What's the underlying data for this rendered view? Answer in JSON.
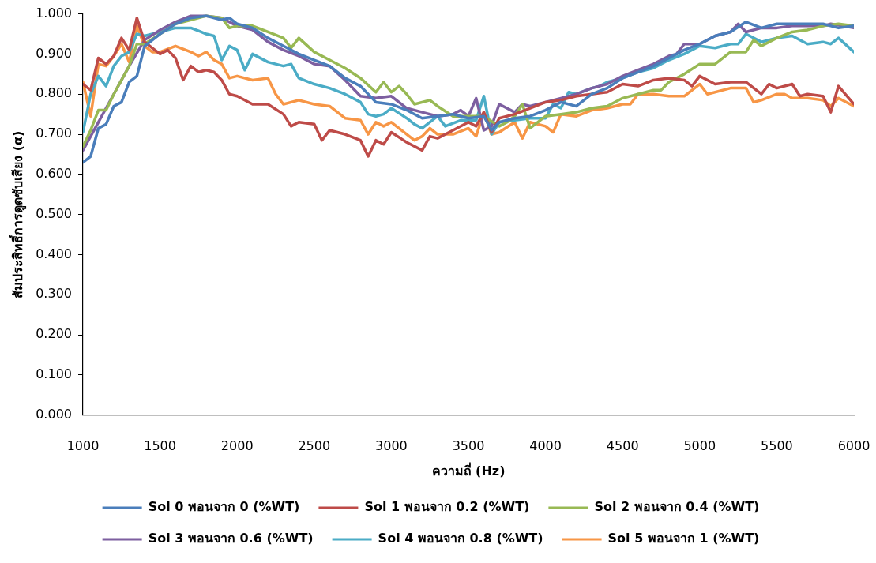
{
  "chart_data": {
    "type": "line",
    "xlabel": "ความถี่ (Hz)",
    "ylabel": "สัมประสิทธิ์การดูดซับเสียง (α)",
    "xlim": [
      1000,
      6000
    ],
    "xticks": [
      1000,
      1500,
      2000,
      2500,
      3000,
      3500,
      4000,
      4500,
      5000,
      5500,
      6000
    ],
    "ylim": [
      0,
      1
    ],
    "yticks": [
      {
        "value": 0,
        "label": "0.000"
      },
      {
        "value": 0.1,
        "label": "0.100"
      },
      {
        "value": 0.2,
        "label": "0.200"
      },
      {
        "value": 0.3,
        "label": "0.300"
      },
      {
        "value": 0.4,
        "label": "0.400"
      },
      {
        "value": 0.5,
        "label": "0.500"
      },
      {
        "value": 0.6,
        "label": "0.600"
      },
      {
        "value": 0.7,
        "label": "0.700"
      },
      {
        "value": 0.8,
        "label": "0.800"
      },
      {
        "value": 0.9,
        "label": "0.900"
      },
      {
        "value": 1,
        "label": "1.000"
      }
    ],
    "grid": false,
    "legend": "bottom",
    "marker": "none",
    "line_style": "solid",
    "series": [
      {
        "name": "Sol 0 พอนจาก 0 (%WT)",
        "color": "#4a7ebb",
        "x": [
          1000,
          1050,
          1100,
          1150,
          1200,
          1250,
          1300,
          1350,
          1400,
          1500,
          1600,
          1700,
          1800,
          1900,
          1950,
          2000,
          2100,
          2200,
          2300,
          2400,
          2500,
          2600,
          2700,
          2800,
          2900,
          3000,
          3100,
          3200,
          3300,
          3400,
          3500,
          3600,
          3650,
          3700,
          3800,
          3900,
          4000,
          4100,
          4200,
          4300,
          4400,
          4500,
          4600,
          4700,
          4800,
          4900,
          5000,
          5100,
          5200,
          5300,
          5400,
          5500,
          5600,
          5700,
          5800,
          5900,
          6000
        ],
        "values": [
          0.63,
          0.645,
          0.715,
          0.725,
          0.77,
          0.78,
          0.83,
          0.845,
          0.92,
          0.95,
          0.975,
          0.99,
          0.995,
          0.985,
          0.99,
          0.975,
          0.965,
          0.94,
          0.92,
          0.9,
          0.885,
          0.87,
          0.84,
          0.82,
          0.78,
          0.775,
          0.76,
          0.74,
          0.745,
          0.75,
          0.74,
          0.745,
          0.71,
          0.73,
          0.74,
          0.745,
          0.76,
          0.78,
          0.77,
          0.8,
          0.815,
          0.84,
          0.855,
          0.87,
          0.89,
          0.91,
          0.925,
          0.945,
          0.955,
          0.98,
          0.965,
          0.975,
          0.975,
          0.975,
          0.975,
          0.965,
          0.97
        ]
      },
      {
        "name": "Sol 1 พอนจาก 0.2 (%WT)",
        "color": "#be4b48",
        "x": [
          1000,
          1050,
          1100,
          1150,
          1200,
          1250,
          1300,
          1350,
          1400,
          1450,
          1500,
          1550,
          1600,
          1650,
          1700,
          1750,
          1800,
          1850,
          1900,
          1950,
          2000,
          2100,
          2200,
          2300,
          2350,
          2400,
          2500,
          2550,
          2600,
          2700,
          2800,
          2850,
          2900,
          2950,
          3000,
          3100,
          3200,
          3250,
          3300,
          3400,
          3500,
          3550,
          3600,
          3650,
          3700,
          3800,
          3900,
          4000,
          4100,
          4200,
          4300,
          4400,
          4500,
          4600,
          4700,
          4800,
          4900,
          4950,
          5000,
          5100,
          5200,
          5300,
          5400,
          5450,
          5500,
          5600,
          5650,
          5700,
          5800,
          5850,
          5900,
          6000
        ],
        "values": [
          0.825,
          0.81,
          0.89,
          0.875,
          0.895,
          0.94,
          0.91,
          0.99,
          0.93,
          0.915,
          0.9,
          0.91,
          0.89,
          0.835,
          0.87,
          0.855,
          0.86,
          0.855,
          0.835,
          0.8,
          0.795,
          0.775,
          0.775,
          0.75,
          0.72,
          0.73,
          0.725,
          0.685,
          0.71,
          0.7,
          0.685,
          0.645,
          0.685,
          0.675,
          0.705,
          0.68,
          0.66,
          0.695,
          0.69,
          0.71,
          0.73,
          0.72,
          0.755,
          0.705,
          0.74,
          0.75,
          0.765,
          0.78,
          0.785,
          0.795,
          0.8,
          0.805,
          0.825,
          0.82,
          0.835,
          0.84,
          0.835,
          0.82,
          0.845,
          0.825,
          0.83,
          0.83,
          0.8,
          0.825,
          0.815,
          0.825,
          0.795,
          0.8,
          0.795,
          0.755,
          0.82,
          0.775
        ]
      },
      {
        "name": "Sol 2 พอนจาก 0.4 (%WT)",
        "color": "#98b954",
        "x": [
          1000,
          1050,
          1100,
          1150,
          1200,
          1300,
          1350,
          1400,
          1500,
          1600,
          1700,
          1800,
          1900,
          1950,
          2000,
          2100,
          2200,
          2300,
          2350,
          2400,
          2500,
          2600,
          2700,
          2800,
          2900,
          2950,
          3000,
          3050,
          3100,
          3150,
          3250,
          3300,
          3400,
          3500,
          3600,
          3700,
          3750,
          3800,
          3850,
          3900,
          4000,
          4100,
          4200,
          4300,
          4400,
          4500,
          4600,
          4700,
          4750,
          4800,
          4900,
          5000,
          5100,
          5200,
          5300,
          5350,
          5400,
          5500,
          5600,
          5700,
          5800,
          5900,
          6000
        ],
        "values": [
          0.67,
          0.71,
          0.76,
          0.76,
          0.8,
          0.87,
          0.925,
          0.925,
          0.95,
          0.975,
          0.985,
          0.995,
          0.99,
          0.965,
          0.97,
          0.97,
          0.955,
          0.94,
          0.915,
          0.94,
          0.905,
          0.885,
          0.865,
          0.84,
          0.805,
          0.83,
          0.805,
          0.82,
          0.8,
          0.775,
          0.785,
          0.77,
          0.745,
          0.745,
          0.745,
          0.72,
          0.73,
          0.745,
          0.775,
          0.715,
          0.745,
          0.75,
          0.755,
          0.765,
          0.77,
          0.79,
          0.8,
          0.81,
          0.81,
          0.83,
          0.85,
          0.875,
          0.875,
          0.905,
          0.905,
          0.935,
          0.92,
          0.94,
          0.955,
          0.96,
          0.97,
          0.975,
          0.97
        ]
      },
      {
        "name": "Sol 3 พอนจาก 0.6 (%WT)",
        "color": "#7d5fa0",
        "x": [
          1000,
          1100,
          1200,
          1300,
          1400,
          1500,
          1600,
          1700,
          1800,
          1900,
          2000,
          2100,
          2200,
          2300,
          2400,
          2500,
          2600,
          2700,
          2800,
          2900,
          3000,
          3100,
          3200,
          3300,
          3400,
          3450,
          3500,
          3550,
          3600,
          3650,
          3700,
          3800,
          3850,
          3900,
          4000,
          4100,
          4200,
          4300,
          4400,
          4500,
          4600,
          4700,
          4800,
          4850,
          4900,
          5000,
          5100,
          5200,
          5250,
          5300,
          5400,
          5500,
          5600,
          5700,
          5800,
          5850,
          6000
        ],
        "values": [
          0.66,
          0.73,
          0.8,
          0.87,
          0.935,
          0.96,
          0.98,
          0.995,
          0.995,
          0.99,
          0.97,
          0.96,
          0.93,
          0.91,
          0.895,
          0.875,
          0.87,
          0.835,
          0.795,
          0.79,
          0.795,
          0.765,
          0.755,
          0.745,
          0.75,
          0.76,
          0.745,
          0.79,
          0.71,
          0.72,
          0.775,
          0.755,
          0.775,
          0.77,
          0.78,
          0.79,
          0.8,
          0.815,
          0.825,
          0.845,
          0.86,
          0.875,
          0.895,
          0.9,
          0.925,
          0.925,
          0.945,
          0.955,
          0.975,
          0.955,
          0.965,
          0.965,
          0.97,
          0.97,
          0.97,
          0.975,
          0.965
        ]
      },
      {
        "name": "Sol 4 พอนจาก 0.8 (%WT)",
        "color": "#4bacc6",
        "x": [
          1000,
          1050,
          1100,
          1150,
          1200,
          1250,
          1300,
          1350,
          1400,
          1500,
          1600,
          1700,
          1800,
          1850,
          1900,
          1950,
          2000,
          2050,
          2100,
          2200,
          2300,
          2350,
          2400,
          2500,
          2600,
          2700,
          2800,
          2850,
          2900,
          2950,
          3000,
          3100,
          3150,
          3200,
          3300,
          3350,
          3450,
          3500,
          3550,
          3600,
          3650,
          3700,
          3800,
          3900,
          4000,
          4050,
          4100,
          4150,
          4200,
          4300,
          4350,
          4400,
          4500,
          4600,
          4700,
          4800,
          4900,
          5000,
          5100,
          5200,
          5250,
          5300,
          5400,
          5500,
          5600,
          5700,
          5800,
          5850,
          5900,
          6000
        ],
        "values": [
          0.705,
          0.8,
          0.845,
          0.82,
          0.87,
          0.895,
          0.905,
          0.95,
          0.945,
          0.955,
          0.965,
          0.965,
          0.95,
          0.945,
          0.885,
          0.92,
          0.91,
          0.86,
          0.9,
          0.88,
          0.87,
          0.875,
          0.84,
          0.825,
          0.815,
          0.8,
          0.78,
          0.75,
          0.745,
          0.75,
          0.765,
          0.74,
          0.725,
          0.715,
          0.745,
          0.72,
          0.735,
          0.735,
          0.735,
          0.795,
          0.7,
          0.73,
          0.735,
          0.74,
          0.74,
          0.775,
          0.765,
          0.805,
          0.8,
          0.815,
          0.82,
          0.83,
          0.84,
          0.855,
          0.865,
          0.885,
          0.9,
          0.92,
          0.915,
          0.925,
          0.925,
          0.95,
          0.93,
          0.94,
          0.945,
          0.925,
          0.93,
          0.925,
          0.94,
          0.905
        ]
      },
      {
        "name": "Sol 5 พอนจาก 1 (%WT)",
        "color": "#f79646",
        "x": [
          1000,
          1050,
          1100,
          1150,
          1200,
          1250,
          1300,
          1350,
          1400,
          1450,
          1500,
          1600,
          1700,
          1750,
          1800,
          1850,
          1900,
          1950,
          2000,
          2100,
          2200,
          2250,
          2300,
          2400,
          2500,
          2600,
          2700,
          2800,
          2850,
          2900,
          2950,
          3000,
          3100,
          3150,
          3200,
          3250,
          3300,
          3400,
          3500,
          3550,
          3600,
          3650,
          3700,
          3800,
          3850,
          3900,
          4000,
          4050,
          4100,
          4200,
          4300,
          4400,
          4500,
          4550,
          4600,
          4700,
          4800,
          4900,
          5000,
          5050,
          5200,
          5300,
          5350,
          5400,
          5500,
          5550,
          5600,
          5700,
          5800,
          5850,
          5900,
          6000
        ],
        "values": [
          0.83,
          0.745,
          0.875,
          0.87,
          0.895,
          0.925,
          0.88,
          0.97,
          0.92,
          0.905,
          0.905,
          0.92,
          0.905,
          0.895,
          0.905,
          0.885,
          0.875,
          0.84,
          0.845,
          0.835,
          0.84,
          0.8,
          0.775,
          0.785,
          0.775,
          0.77,
          0.74,
          0.735,
          0.7,
          0.73,
          0.72,
          0.73,
          0.7,
          0.685,
          0.695,
          0.715,
          0.7,
          0.7,
          0.715,
          0.695,
          0.755,
          0.7,
          0.705,
          0.73,
          0.69,
          0.73,
          0.72,
          0.705,
          0.75,
          0.745,
          0.76,
          0.765,
          0.775,
          0.775,
          0.8,
          0.8,
          0.795,
          0.795,
          0.825,
          0.8,
          0.815,
          0.815,
          0.78,
          0.785,
          0.8,
          0.8,
          0.79,
          0.79,
          0.785,
          0.77,
          0.79,
          0.77
        ]
      }
    ]
  }
}
